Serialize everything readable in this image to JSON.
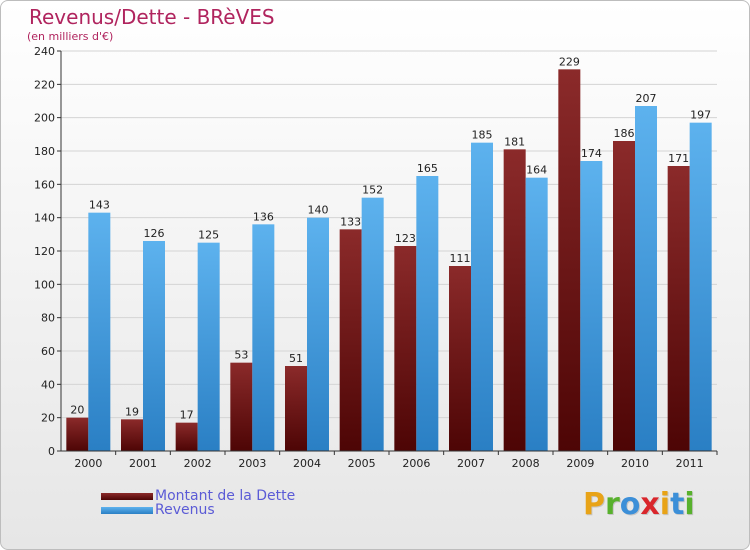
{
  "chart_data": {
    "type": "bar",
    "title": "Revenus/Dette - BRèVES",
    "subtitle": "(en milliers d'€)",
    "categories": [
      "2000",
      "2001",
      "2002",
      "2003",
      "2004",
      "2005",
      "2006",
      "2007",
      "2008",
      "2009",
      "2010",
      "2011"
    ],
    "series": [
      {
        "name": "Montant de la Dette",
        "values": [
          20,
          19,
          17,
          53,
          51,
          133,
          123,
          111,
          181,
          229,
          186,
          171
        ],
        "color": "#7a1e1e"
      },
      {
        "name": "Revenus",
        "values": [
          143,
          126,
          125,
          136,
          140,
          152,
          165,
          185,
          164,
          174,
          207,
          197
        ],
        "color": "#3d9ae0"
      }
    ],
    "ylim": [
      0,
      240
    ],
    "yticks": [
      0,
      20,
      40,
      60,
      80,
      100,
      120,
      140,
      160,
      180,
      200,
      220,
      240
    ],
    "grid": true,
    "legend_position": "bottom-left",
    "xlabel": "",
    "ylabel": ""
  },
  "logo": {
    "text": "Proxiti"
  },
  "colors": {
    "title": "#b0245e",
    "legend_text": "#5b5bd6"
  }
}
